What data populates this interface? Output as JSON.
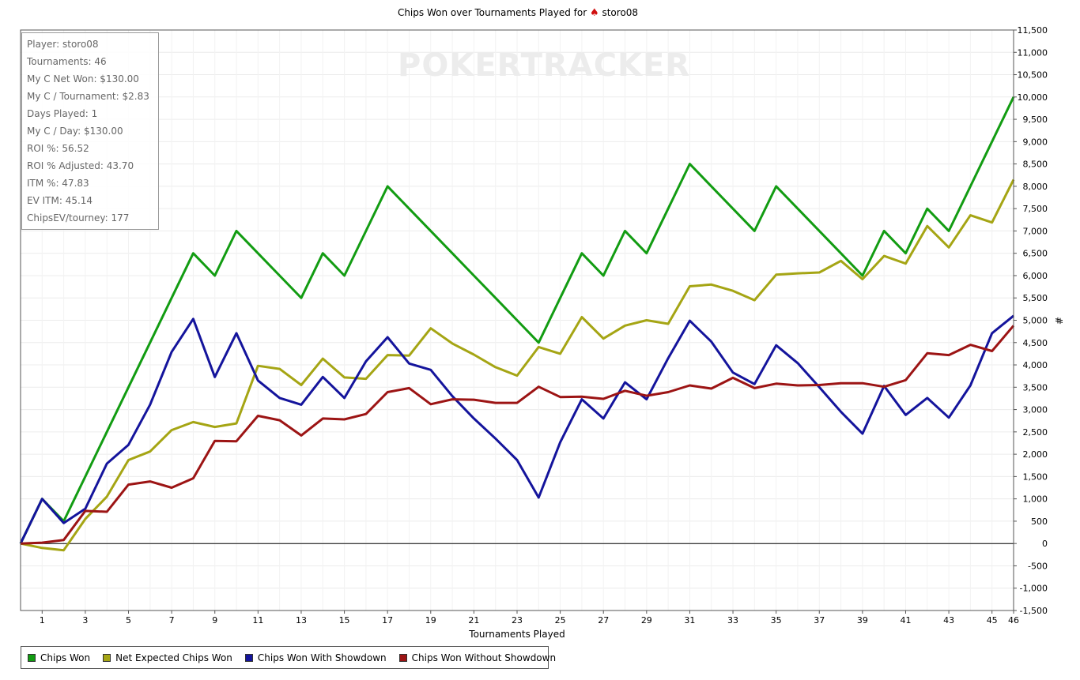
{
  "title": "Chips Won over Tournaments Played for",
  "player_name": "storo08",
  "watermark": "POKERTRACKER",
  "stats": [
    "Player: storo08",
    "Tournaments: 46",
    "My C Net Won: $130.00",
    "My C / Tournament: $2.83",
    "Days Played: 1",
    "My C / Day: $130.00",
    "ROI %: 56.52",
    "ROI % Adjusted: 43.70",
    "ITM %: 47.83",
    "EV ITM: 45.14",
    "ChipsEV/tourney: 177"
  ],
  "chart_data": {
    "type": "line",
    "xlabel": "Tournaments Played",
    "ylabel": "#",
    "xlim": [
      0,
      46
    ],
    "ylim": [
      -1500,
      11500
    ],
    "x_ticks": [
      1,
      3,
      5,
      7,
      9,
      11,
      13,
      15,
      17,
      19,
      21,
      23,
      25,
      27,
      29,
      31,
      33,
      35,
      37,
      39,
      41,
      43,
      45,
      46
    ],
    "y_ticks": [
      -1500,
      -1000,
      -500,
      0,
      500,
      1000,
      1500,
      2000,
      2500,
      3000,
      3500,
      4000,
      4500,
      5000,
      5500,
      6000,
      6500,
      7000,
      7500,
      8000,
      8500,
      9000,
      9500,
      10000,
      10500,
      11000,
      11500
    ],
    "y_tick_labels": [
      "-1,500",
      "-1,000",
      "-500",
      "0",
      "500",
      "1,000",
      "1,500",
      "2,000",
      "2,500",
      "3,000",
      "3,500",
      "4,000",
      "4,500",
      "5,000",
      "5,500",
      "6,000",
      "6,500",
      "7,000",
      "7,500",
      "8,000",
      "8,500",
      "9,000",
      "9,500",
      "10,000",
      "10,500",
      "11,000",
      "11,500"
    ],
    "grid": true,
    "legend_position": "bottom-left",
    "x": [
      0,
      1,
      2,
      3,
      4,
      5,
      6,
      7,
      8,
      9,
      10,
      11,
      12,
      13,
      14,
      15,
      16,
      17,
      18,
      19,
      20,
      21,
      22,
      23,
      24,
      25,
      26,
      27,
      28,
      29,
      30,
      31,
      32,
      33,
      34,
      35,
      36,
      37,
      38,
      39,
      40,
      41,
      42,
      43,
      44,
      45,
      46
    ],
    "series": [
      {
        "name": "Chips Won",
        "color": "#129c12",
        "values": [
          0,
          1000,
          500,
          1500,
          2500,
          3500,
          4500,
          5500,
          6500,
          6000,
          7000,
          6500,
          6000,
          5500,
          6500,
          6000,
          7000,
          8000,
          7500,
          7000,
          6500,
          6000,
          5500,
          5000,
          4500,
          5500,
          6500,
          6000,
          7000,
          6500,
          7500,
          8500,
          8000,
          7500,
          7000,
          8000,
          7500,
          7000,
          6500,
          6000,
          7000,
          6500,
          7500,
          7000,
          8000,
          9000,
          10000
        ]
      },
      {
        "name": "Net Expected Chips Won",
        "color": "#a5a514",
        "values": [
          0,
          -100,
          -150,
          550,
          1050,
          1870,
          2060,
          2540,
          2720,
          2610,
          2690,
          3980,
          3910,
          3550,
          4140,
          3720,
          3690,
          4220,
          4210,
          4820,
          4480,
          4230,
          3950,
          3760,
          4400,
          4250,
          5070,
          4590,
          4880,
          5000,
          4920,
          5760,
          5800,
          5660,
          5450,
          6020,
          6050,
          6070,
          6330,
          5920,
          6440,
          6270,
          7110,
          6630,
          7350,
          7190,
          8150
        ]
      },
      {
        "name": "Chips Won With Showdown",
        "color": "#14149c",
        "values": [
          0,
          1000,
          460,
          780,
          1790,
          2210,
          3110,
          4290,
          5030,
          3730,
          4710,
          3650,
          3260,
          3110,
          3730,
          3260,
          4080,
          4620,
          4030,
          3890,
          3300,
          2800,
          2350,
          1870,
          1030,
          2270,
          3230,
          2800,
          3610,
          3230,
          4150,
          4990,
          4520,
          3830,
          3570,
          4440,
          4040,
          3500,
          2950,
          2460,
          3530,
          2880,
          3260,
          2820,
          3540,
          4710,
          5100
        ]
      },
      {
        "name": "Chips Won Without Showdown",
        "color": "#9c1414",
        "values": [
          0,
          20,
          80,
          730,
          710,
          1320,
          1390,
          1250,
          1460,
          2300,
          2290,
          2860,
          2760,
          2420,
          2800,
          2780,
          2900,
          3390,
          3480,
          3120,
          3230,
          3220,
          3150,
          3150,
          3510,
          3280,
          3290,
          3240,
          3420,
          3310,
          3390,
          3540,
          3470,
          3710,
          3480,
          3580,
          3540,
          3550,
          3590,
          3590,
          3510,
          3660,
          4260,
          4220,
          4450,
          4310,
          4880
        ]
      }
    ]
  }
}
